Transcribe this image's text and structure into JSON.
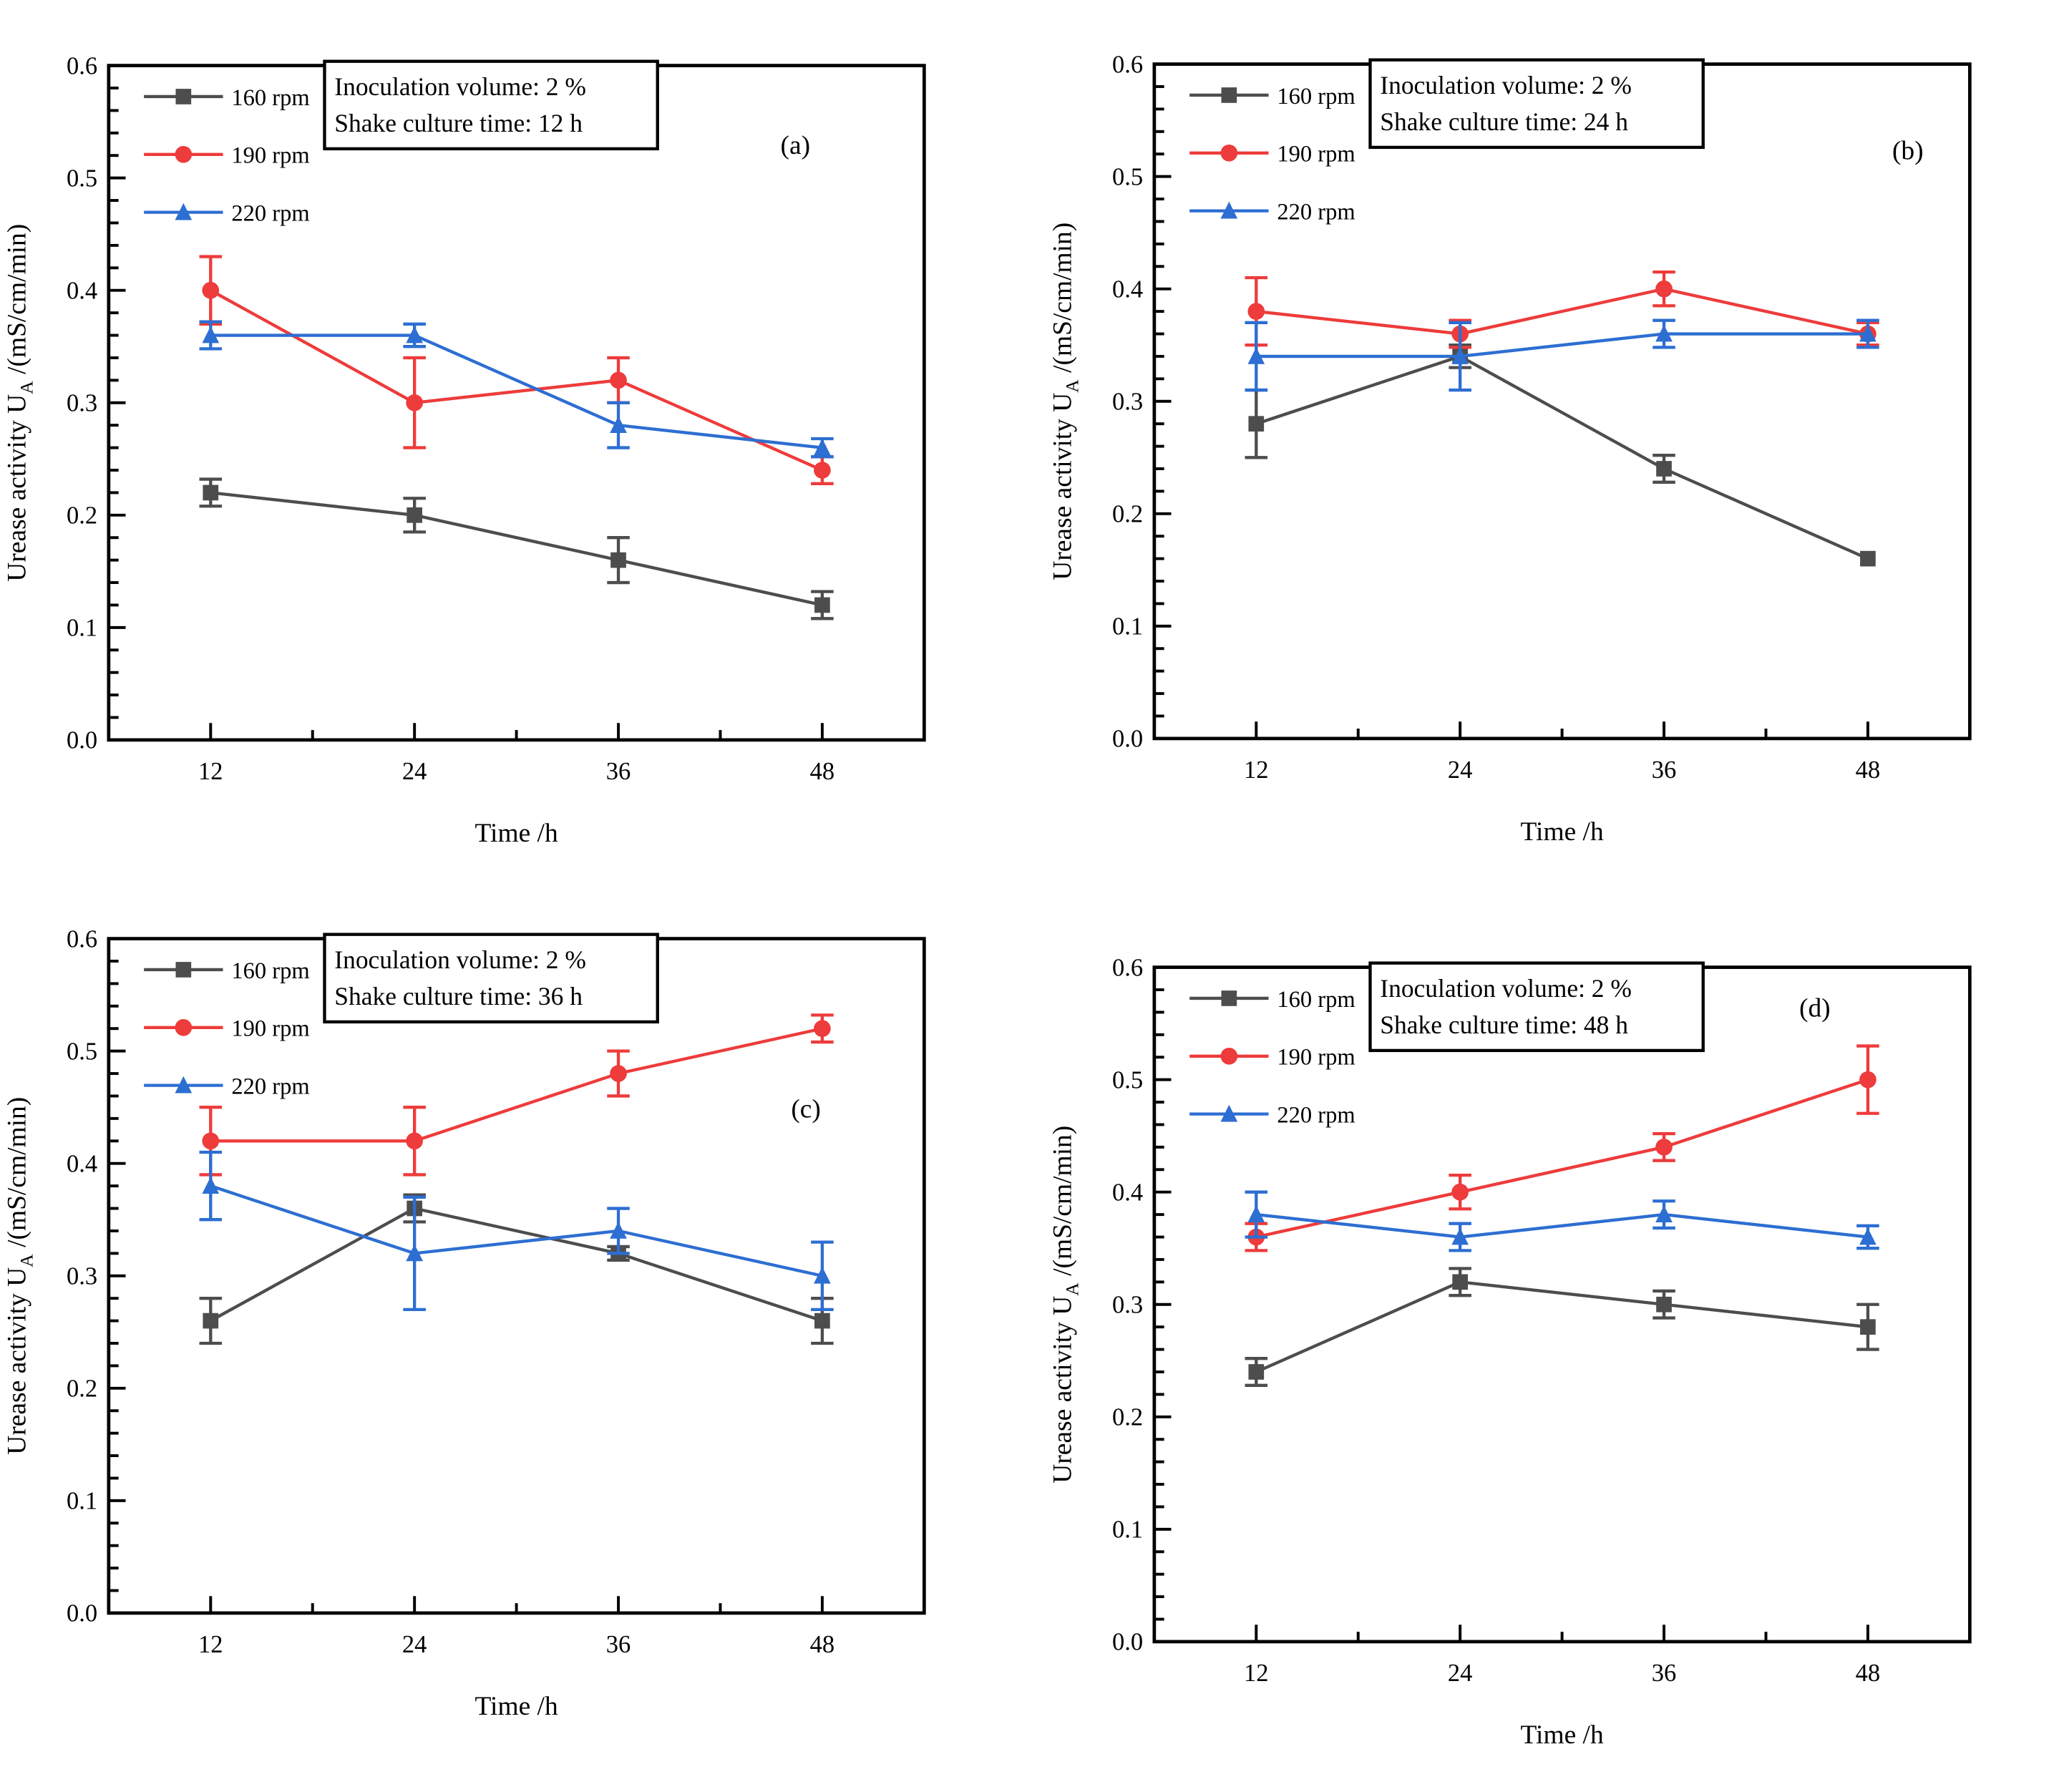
{
  "figure": {
    "background": "#ffffff",
    "axis_color": "#000000"
  },
  "chart_data": {
    "type": "line",
    "x": [
      12,
      24,
      36,
      48
    ],
    "xticks": [
      "12",
      "24",
      "36",
      "48"
    ],
    "x_minor": [
      18,
      30,
      42
    ],
    "yticks": [
      "0.0",
      "0.1",
      "0.2",
      "0.3",
      "0.4",
      "0.5",
      "0.6"
    ],
    "y_minor_step": 0.02,
    "xlim": [
      6,
      54
    ],
    "ylim": [
      0,
      0.6
    ],
    "xlabel": "Time /h",
    "ylabel_main": "Urease activity U",
    "ylabel_sub": "A",
    "ylabel_units": " /(mS/cm/min)",
    "grid": false,
    "legend_position": "top-left-inside",
    "legend": [
      {
        "name": "160 rpm",
        "color": "#4d4d4d",
        "marker": "square"
      },
      {
        "name": "190 rpm",
        "color": "#ee3b3b",
        "marker": "circle"
      },
      {
        "name": "220 rpm",
        "color": "#2d6ed2",
        "marker": "triangle"
      }
    ],
    "panels": [
      {
        "id": "a",
        "label": "(a)",
        "label_pos": [
          0.842,
          0.131
        ],
        "annotation": [
          "Inoculation volume: 2 %",
          "Shake culture time: 12 h"
        ],
        "series": [
          {
            "name": "160 rpm",
            "values": [
              0.22,
              0.2,
              0.16,
              0.12
            ],
            "errors": [
              0.012,
              0.015,
              0.02,
              0.012
            ]
          },
          {
            "name": "190 rpm",
            "values": [
              0.4,
              0.3,
              0.32,
              0.24
            ],
            "errors": [
              0.03,
              0.04,
              0.02,
              0.012
            ]
          },
          {
            "name": "220 rpm",
            "values": [
              0.36,
              0.36,
              0.28,
              0.26
            ],
            "errors": [
              0.012,
              0.01,
              0.02,
              0.008
            ]
          }
        ]
      },
      {
        "id": "b",
        "label": "(b)",
        "label_pos": [
          0.924,
          0.141
        ],
        "annotation": [
          "Inoculation volume: 2 %",
          "Shake culture time: 24 h"
        ],
        "series": [
          {
            "name": "160 rpm",
            "values": [
              0.28,
              0.34,
              0.24,
              0.16
            ],
            "errors": [
              0.03,
              0.01,
              0.012,
              0
            ]
          },
          {
            "name": "190 rpm",
            "values": [
              0.38,
              0.36,
              0.4,
              0.36
            ],
            "errors": [
              0.03,
              0.012,
              0.015,
              0.01
            ]
          },
          {
            "name": "220 rpm",
            "values": [
              0.34,
              0.34,
              0.36,
              0.36
            ],
            "errors": [
              0.03,
              0.03,
              0.012,
              0.012
            ]
          }
        ]
      },
      {
        "id": "c",
        "label": "(c)",
        "label_pos": [
          0.855,
          0.265
        ],
        "annotation": [
          "Inoculation volume: 2 %",
          "Shake culture time: 36 h"
        ],
        "series": [
          {
            "name": "160 rpm",
            "values": [
              0.26,
              0.36,
              0.32,
              0.26
            ],
            "errors": [
              0.02,
              0.012,
              0.006,
              0.02
            ]
          },
          {
            "name": "190 rpm",
            "values": [
              0.42,
              0.42,
              0.48,
              0.52
            ],
            "errors": [
              0.03,
              0.03,
              0.02,
              0.012
            ]
          },
          {
            "name": "220 rpm",
            "values": [
              0.38,
              0.32,
              0.34,
              0.3
            ],
            "errors": [
              0.03,
              0.05,
              0.02,
              0.03
            ]
          }
        ]
      },
      {
        "id": "d",
        "label": "(d)",
        "label_pos": [
          0.81,
          0.073
        ],
        "annotation": [
          "Inoculation volume: 2 %",
          "Shake culture time: 48 h"
        ],
        "series": [
          {
            "name": "160 rpm",
            "values": [
              0.24,
              0.32,
              0.3,
              0.28
            ],
            "errors": [
              0.012,
              0.012,
              0.012,
              0.02
            ]
          },
          {
            "name": "190 rpm",
            "values": [
              0.36,
              0.4,
              0.44,
              0.5
            ],
            "errors": [
              0.012,
              0.015,
              0.012,
              0.03
            ]
          },
          {
            "name": "220 rpm",
            "values": [
              0.38,
              0.36,
              0.38,
              0.36
            ],
            "errors": [
              0.02,
              0.012,
              0.012,
              0.01
            ]
          }
        ]
      }
    ]
  }
}
